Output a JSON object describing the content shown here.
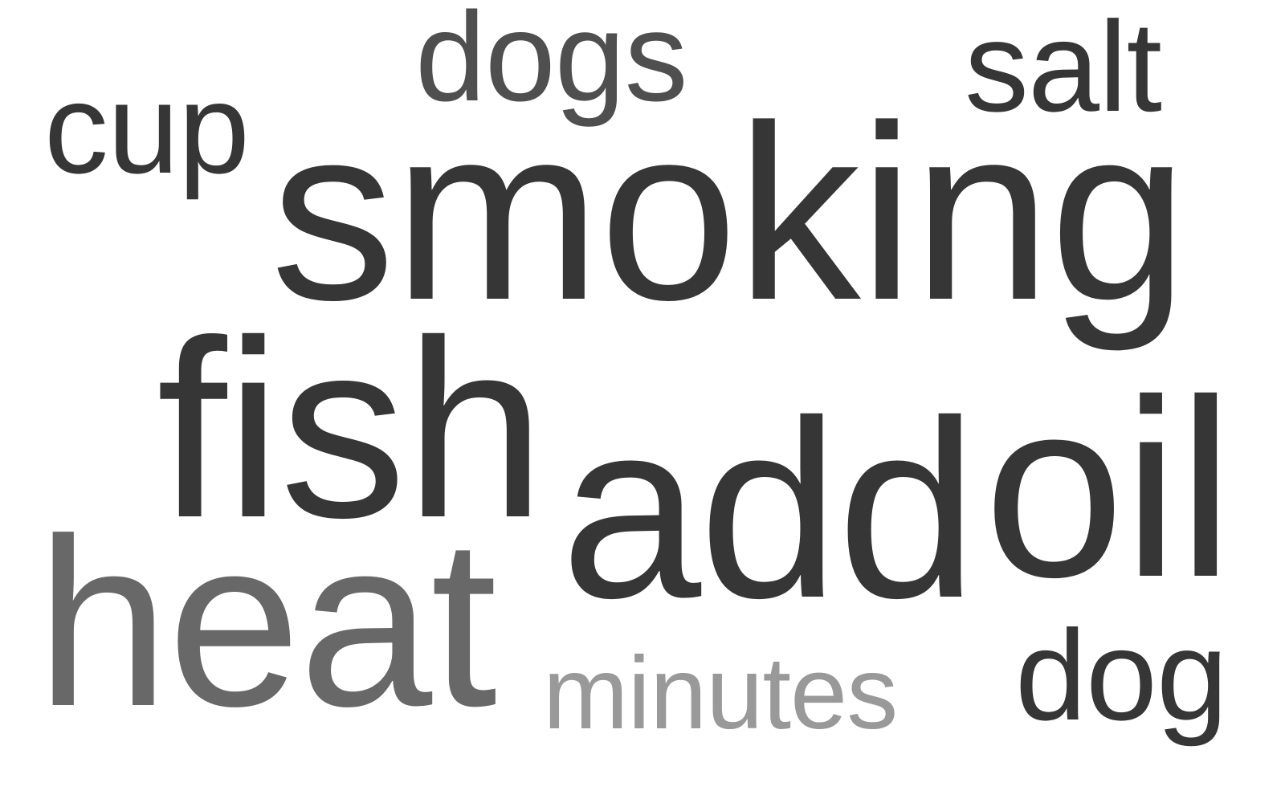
{
  "background_color": "#ffffff",
  "words": [
    {
      "text": "smoking",
      "color": "#363636"
    },
    {
      "text": "fish",
      "color": "#363636"
    },
    {
      "text": "add",
      "color": "#363636"
    },
    {
      "text": "oil",
      "color": "#363636"
    },
    {
      "text": "heat",
      "color": "#686868"
    },
    {
      "text": "dogs",
      "color": "#4f4f4f"
    },
    {
      "text": "salt",
      "color": "#363636"
    },
    {
      "text": "cup",
      "color": "#363636"
    },
    {
      "text": "minutes",
      "color": "#999999"
    },
    {
      "text": "dog",
      "color": "#363636"
    }
  ]
}
